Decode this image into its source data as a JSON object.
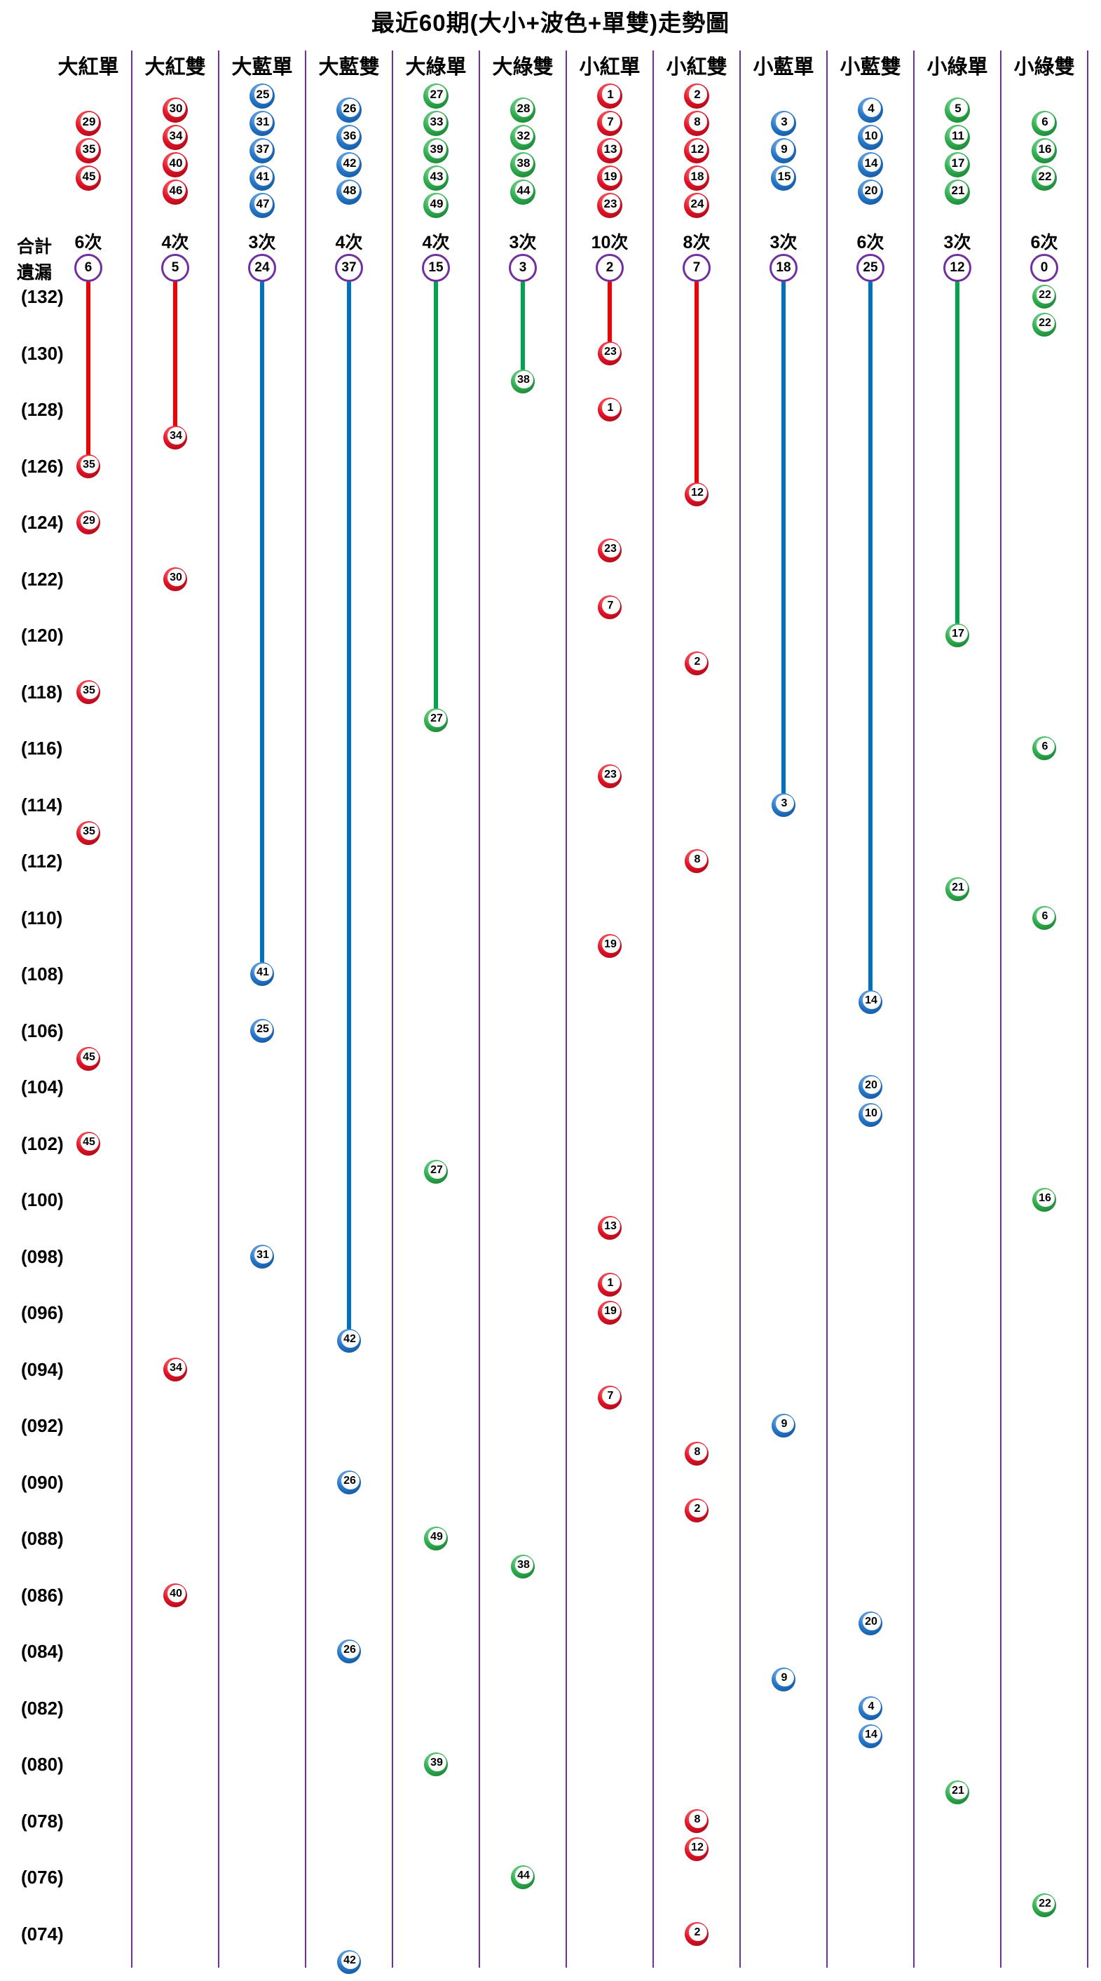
{
  "title": "最近60期(大小+波色+單雙)走勢圖",
  "labels": {
    "total": "合計",
    "missing": "遺漏",
    "times_suffix": "次"
  },
  "colors": {
    "divider_purple": "#7030A0",
    "miss_ring_purple": "#7030A0",
    "line_red": "#F30000",
    "line_blue": "#0070C0",
    "line_green": "#00A44C",
    "ball_red": "#E31226",
    "ball_blue": "#2677C8",
    "ball_green": "#2FAE4E"
  },
  "chart_data": {
    "type": "scatter",
    "description": "Lottery trend chart: 60 periods (132 down to 073, newest on top). Each period has exactly one ball plotted in the category column it belongs to. A colored line runs from each category's miss-count circle down to its most recent ball.",
    "periods": {
      "first": 132,
      "last": 73,
      "label_step": 2
    },
    "columns": [
      {
        "header": "大紅單",
        "color": "red",
        "legend": [
          29,
          35,
          45
        ],
        "total": 6,
        "missing": 6,
        "balls": [
          {
            "period": 126,
            "value": 35
          },
          {
            "period": 124,
            "value": 29
          },
          {
            "period": 118,
            "value": 35
          },
          {
            "period": 113,
            "value": 35
          },
          {
            "period": 105,
            "value": 45
          },
          {
            "period": 102,
            "value": 45
          }
        ]
      },
      {
        "header": "大紅雙",
        "color": "red",
        "legend": [
          30,
          34,
          40,
          46
        ],
        "total": 4,
        "missing": 5,
        "balls": [
          {
            "period": 127,
            "value": 34
          },
          {
            "period": 122,
            "value": 30
          },
          {
            "period": 94,
            "value": 34
          },
          {
            "period": 86,
            "value": 40
          }
        ]
      },
      {
        "header": "大藍單",
        "color": "blue",
        "legend": [
          25,
          31,
          37,
          41,
          47
        ],
        "total": 3,
        "missing": 24,
        "balls": [
          {
            "period": 108,
            "value": 41
          },
          {
            "period": 106,
            "value": 25
          },
          {
            "period": 98,
            "value": 31
          }
        ]
      },
      {
        "header": "大藍雙",
        "color": "blue",
        "legend": [
          26,
          36,
          42,
          48
        ],
        "total": 4,
        "missing": 37,
        "balls": [
          {
            "period": 95,
            "value": 42
          },
          {
            "period": 90,
            "value": 26
          },
          {
            "period": 84,
            "value": 26
          },
          {
            "period": 73,
            "value": 42
          }
        ]
      },
      {
        "header": "大綠單",
        "color": "green",
        "legend": [
          27,
          33,
          39,
          43,
          49
        ],
        "total": 4,
        "missing": 15,
        "balls": [
          {
            "period": 117,
            "value": 27
          },
          {
            "period": 101,
            "value": 27
          },
          {
            "period": 88,
            "value": 49
          },
          {
            "period": 80,
            "value": 39
          }
        ]
      },
      {
        "header": "大綠雙",
        "color": "green",
        "legend": [
          28,
          32,
          38,
          44
        ],
        "total": 3,
        "missing": 3,
        "balls": [
          {
            "period": 129,
            "value": 38
          },
          {
            "period": 87,
            "value": 38
          },
          {
            "period": 76,
            "value": 44
          }
        ]
      },
      {
        "header": "小紅單",
        "color": "red",
        "legend": [
          1,
          7,
          13,
          19,
          23
        ],
        "total": 10,
        "missing": 2,
        "balls": [
          {
            "period": 130,
            "value": 23
          },
          {
            "period": 128,
            "value": 1
          },
          {
            "period": 123,
            "value": 23
          },
          {
            "period": 121,
            "value": 7
          },
          {
            "period": 115,
            "value": 23
          },
          {
            "period": 109,
            "value": 19
          },
          {
            "period": 99,
            "value": 13
          },
          {
            "period": 97,
            "value": 1
          },
          {
            "period": 96,
            "value": 19
          },
          {
            "period": 93,
            "value": 7
          }
        ]
      },
      {
        "header": "小紅雙",
        "color": "red",
        "legend": [
          2,
          8,
          12,
          18,
          24
        ],
        "total": 8,
        "missing": 7,
        "balls": [
          {
            "period": 125,
            "value": 12
          },
          {
            "period": 119,
            "value": 2
          },
          {
            "period": 112,
            "value": 8
          },
          {
            "period": 91,
            "value": 8
          },
          {
            "period": 89,
            "value": 2
          },
          {
            "period": 78,
            "value": 8
          },
          {
            "period": 77,
            "value": 12
          },
          {
            "period": 74,
            "value": 2
          }
        ]
      },
      {
        "header": "小藍單",
        "color": "blue",
        "legend": [
          3,
          9,
          15
        ],
        "total": 3,
        "missing": 18,
        "balls": [
          {
            "period": 114,
            "value": 3
          },
          {
            "period": 92,
            "value": 9
          },
          {
            "period": 83,
            "value": 9
          }
        ]
      },
      {
        "header": "小藍雙",
        "color": "blue",
        "legend": [
          4,
          10,
          14,
          20
        ],
        "total": 6,
        "missing": 25,
        "balls": [
          {
            "period": 107,
            "value": 14
          },
          {
            "period": 104,
            "value": 20
          },
          {
            "period": 103,
            "value": 10
          },
          {
            "period": 85,
            "value": 20
          },
          {
            "period": 82,
            "value": 4
          },
          {
            "period": 81,
            "value": 14
          }
        ]
      },
      {
        "header": "小綠單",
        "color": "green",
        "legend": [
          5,
          11,
          17,
          21
        ],
        "total": 3,
        "missing": 12,
        "balls": [
          {
            "period": 120,
            "value": 17
          },
          {
            "period": 111,
            "value": 21
          },
          {
            "period": 79,
            "value": 21
          }
        ]
      },
      {
        "header": "小綠雙",
        "color": "green",
        "legend": [
          6,
          16,
          22
        ],
        "total": 6,
        "missing": 0,
        "balls": [
          {
            "period": 132,
            "value": 22
          },
          {
            "period": 131,
            "value": 22
          },
          {
            "period": 116,
            "value": 6
          },
          {
            "period": 110,
            "value": 6
          },
          {
            "period": 100,
            "value": 16
          },
          {
            "period": 75,
            "value": 22
          }
        ]
      }
    ]
  }
}
